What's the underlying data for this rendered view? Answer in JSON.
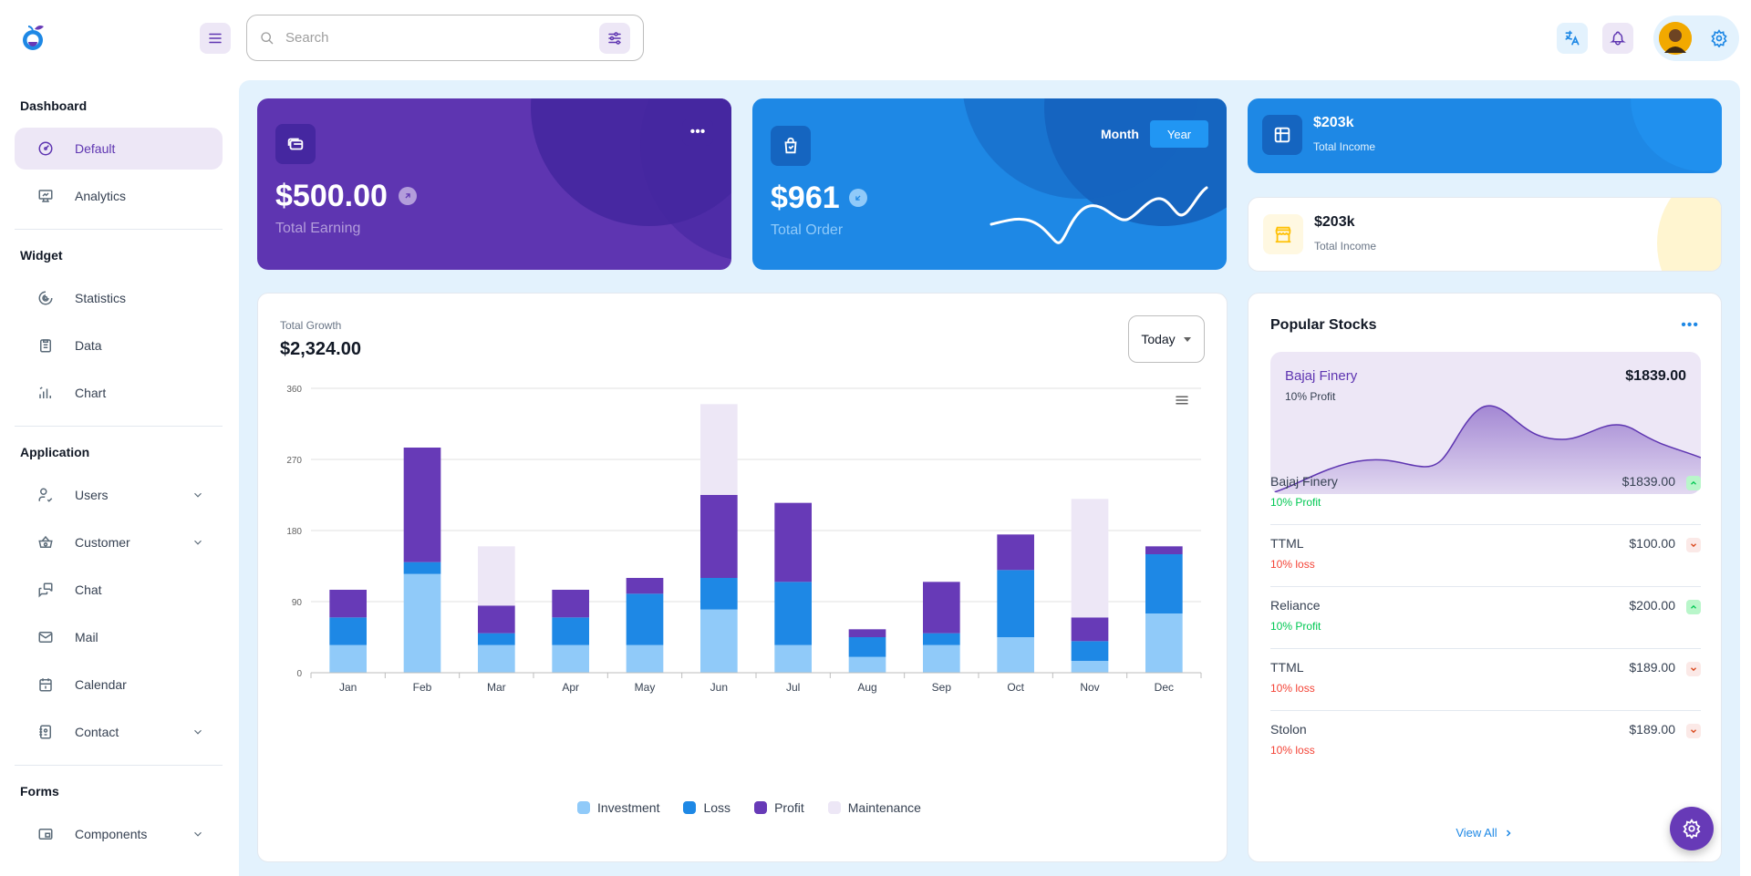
{
  "header": {
    "search_placeholder": "Search",
    "logo": "app-logo-icon"
  },
  "sidebar": {
    "sections": [
      {
        "title": "Dashboard"
      },
      {
        "title": "Widget"
      },
      {
        "title": "Application"
      },
      {
        "title": "Forms"
      }
    ],
    "items": [
      {
        "label": "Default",
        "icon": "dashboard-icon",
        "active": true
      },
      {
        "label": "Analytics",
        "icon": "device-analytics-icon"
      },
      {
        "label": "Statistics",
        "icon": "chart-arcs-icon"
      },
      {
        "label": "Data",
        "icon": "clipboard-list-icon"
      },
      {
        "label": "Chart",
        "icon": "chart-bars-icon"
      },
      {
        "label": "Users",
        "icon": "user-check-icon",
        "has_children": true
      },
      {
        "label": "Customer",
        "icon": "basket-icon",
        "has_children": true
      },
      {
        "label": "Chat",
        "icon": "messages-icon"
      },
      {
        "label": "Mail",
        "icon": "mail-icon"
      },
      {
        "label": "Calendar",
        "icon": "calendar-icon"
      },
      {
        "label": "Contact",
        "icon": "address-book-icon",
        "has_children": true
      },
      {
        "label": "Components",
        "icon": "browser-icon",
        "has_children": true
      }
    ]
  },
  "cards": {
    "earning": {
      "value": "$500.00",
      "label": "Total Earning"
    },
    "order": {
      "value": "$961",
      "label": "Total Order",
      "toggle_month": "Month",
      "toggle_year": "Year",
      "selected": "Year"
    },
    "income_dark": {
      "value": "$203k",
      "label": "Total Income"
    },
    "income_light": {
      "value": "$203k",
      "label": "Total Income"
    }
  },
  "growth": {
    "title": "Total Growth",
    "value": "$2,324.00",
    "period": "Today"
  },
  "chart_data": {
    "type": "bar",
    "stacked": true,
    "categories": [
      "Jan",
      "Feb",
      "Mar",
      "Apr",
      "May",
      "Jun",
      "Jul",
      "Aug",
      "Sep",
      "Oct",
      "Nov",
      "Dec"
    ],
    "series": [
      {
        "name": "Investment",
        "color": "#90caf9",
        "values": [
          35,
          125,
          35,
          35,
          35,
          80,
          35,
          20,
          35,
          45,
          15,
          75
        ]
      },
      {
        "name": "Loss",
        "color": "#1e88e5",
        "values": [
          35,
          15,
          15,
          35,
          65,
          40,
          80,
          25,
          15,
          85,
          25,
          75
        ]
      },
      {
        "name": "Profit",
        "color": "#673ab7",
        "values": [
          35,
          145,
          35,
          35,
          20,
          105,
          100,
          10,
          65,
          45,
          30,
          10
        ]
      },
      {
        "name": "Maintenance",
        "color": "#ede7f6",
        "values": [
          0,
          0,
          75,
          0,
          0,
          115,
          0,
          0,
          0,
          0,
          150,
          0
        ]
      }
    ],
    "yticks": [
      0,
      90,
      180,
      270,
      360
    ],
    "ylim": [
      0,
      360
    ],
    "grid": true,
    "legend": "bottom"
  },
  "stocks": {
    "title": "Popular Stocks",
    "highlight": {
      "name": "Bajaj Finery",
      "profit": "10% Profit",
      "price": "$1839.00"
    },
    "rows": [
      {
        "name": "Bajaj Finery",
        "change": "10% Profit",
        "price": "$1839.00",
        "trend": "up"
      },
      {
        "name": "TTML",
        "change": "10% loss",
        "price": "$100.00",
        "trend": "down"
      },
      {
        "name": "Reliance",
        "change": "10% Profit",
        "price": "$200.00",
        "trend": "up"
      },
      {
        "name": "TTML",
        "change": "10% loss",
        "price": "$189.00",
        "trend": "down"
      },
      {
        "name": "Stolon",
        "change": "10% loss",
        "price": "$189.00",
        "trend": "down"
      }
    ],
    "view_all": "View All"
  },
  "colors": {
    "primary": "#5e35b1",
    "secondary": "#1e88e5",
    "background": "#e3f2fd",
    "success": "#00c853",
    "error": "#f44336"
  }
}
